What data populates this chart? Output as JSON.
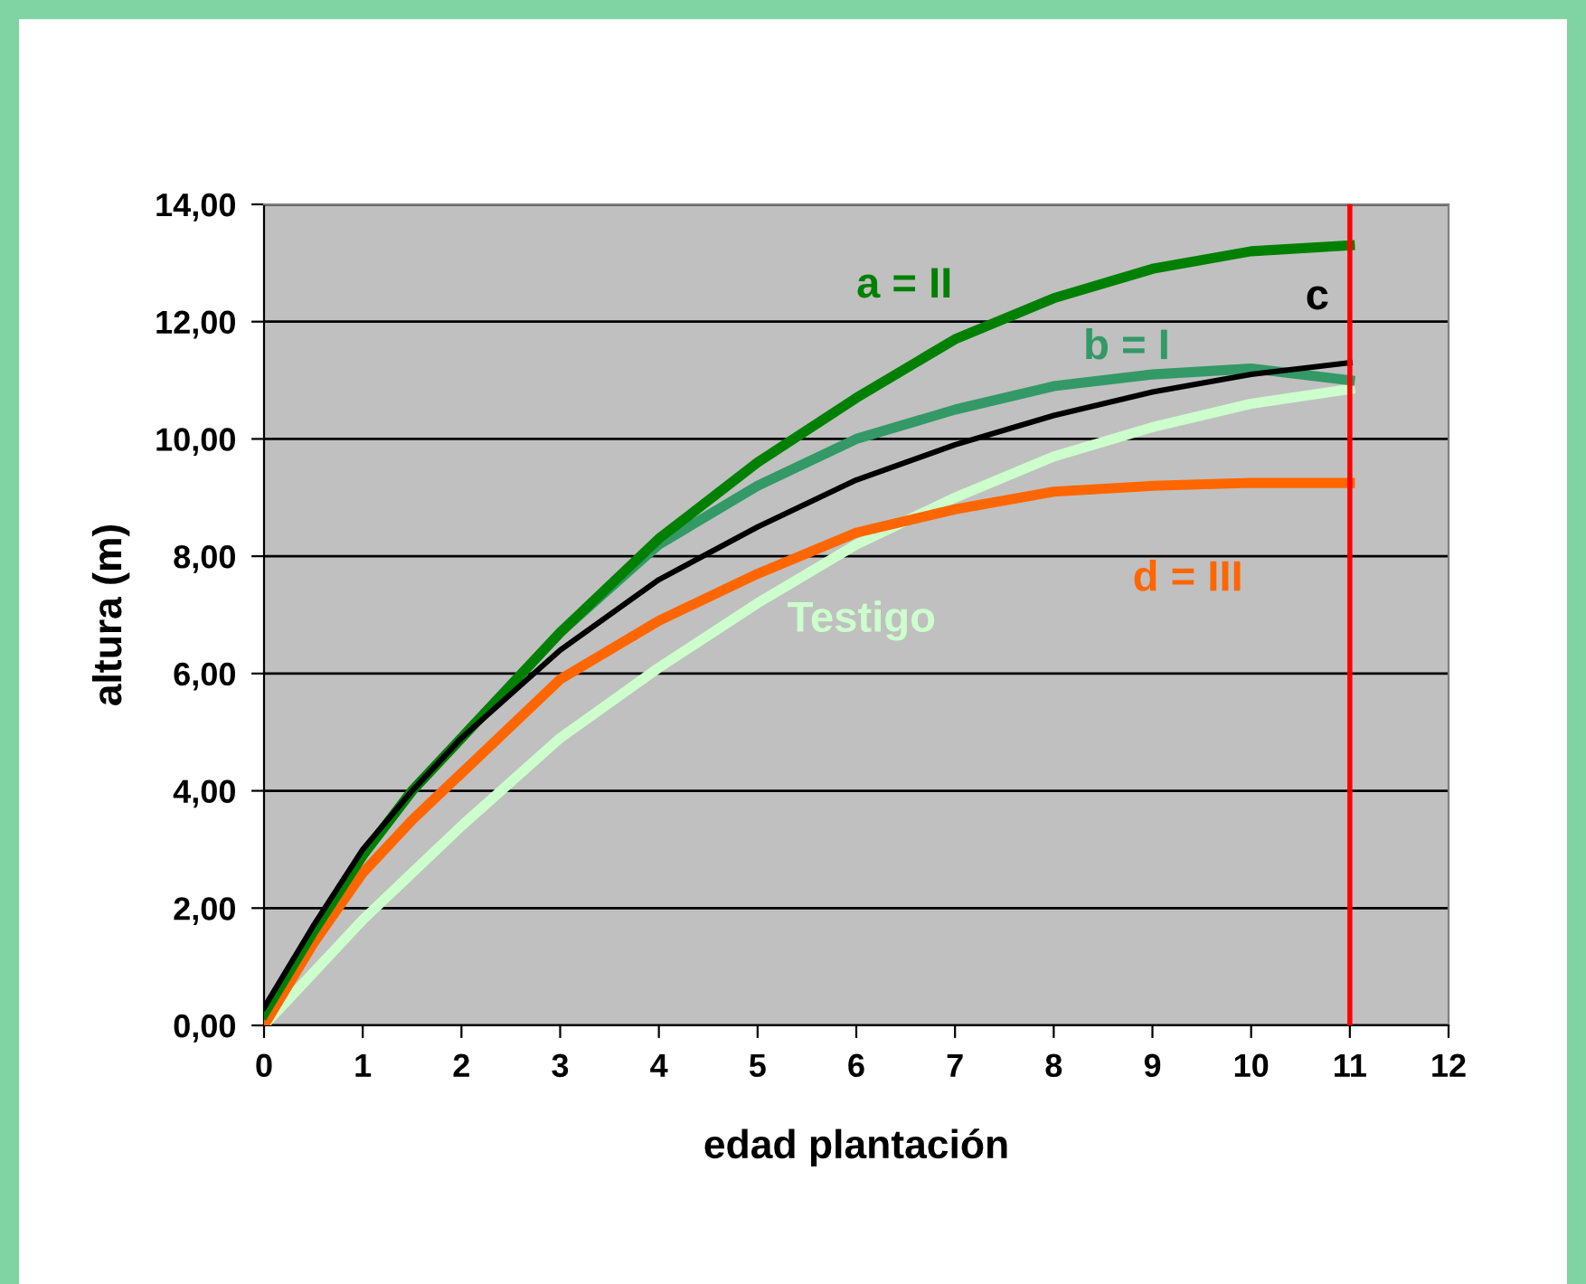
{
  "chart_data": {
    "type": "line",
    "xlabel": "edad plantación",
    "ylabel": "altura (m)",
    "x": [
      0,
      0.5,
      1,
      1.5,
      2,
      3,
      4,
      5,
      6,
      7,
      8,
      9,
      10,
      11
    ],
    "series": [
      {
        "name": "a = II",
        "color": "#008000",
        "values": [
          0.2,
          1.6,
          2.9,
          4.0,
          4.9,
          6.7,
          8.3,
          9.6,
          10.7,
          11.7,
          12.4,
          12.9,
          13.2,
          13.3
        ]
      },
      {
        "name": "b = I",
        "color": "#339966",
        "values": [
          0.2,
          1.6,
          2.9,
          4.0,
          4.9,
          6.7,
          8.2,
          9.2,
          10.0,
          10.5,
          10.9,
          11.1,
          11.2,
          11.0
        ]
      },
      {
        "name": "c",
        "color": "#000000",
        "values": [
          0.3,
          1.7,
          3.0,
          4.0,
          4.9,
          6.4,
          7.6,
          8.5,
          9.3,
          9.9,
          10.4,
          10.8,
          11.1,
          11.3
        ]
      },
      {
        "name": "d = III",
        "color": "#ff6600",
        "values": [
          0.0,
          1.4,
          2.6,
          3.5,
          4.3,
          5.9,
          6.9,
          7.7,
          8.4,
          8.8,
          9.1,
          9.2,
          9.25,
          9.25
        ]
      },
      {
        "name": "Testigo",
        "color": "#ccffcc",
        "values": [
          0.0,
          0.9,
          1.8,
          2.6,
          3.4,
          4.9,
          6.1,
          7.2,
          8.2,
          9.0,
          9.7,
          10.2,
          10.6,
          10.85
        ]
      }
    ],
    "xlim": [
      0,
      12
    ],
    "xticks": [
      0,
      1,
      2,
      3,
      4,
      5,
      6,
      7,
      8,
      9,
      10,
      11,
      12
    ],
    "ylim": [
      0,
      14
    ],
    "yticks": [
      {
        "value": 0,
        "label": "0,00"
      },
      {
        "value": 2,
        "label": "2,00"
      },
      {
        "value": 4,
        "label": "4,00"
      },
      {
        "value": 6,
        "label": "6,00"
      },
      {
        "value": 8,
        "label": "8,00"
      },
      {
        "value": 10,
        "label": "10,00"
      },
      {
        "value": 12,
        "label": "12,00"
      },
      {
        "value": 14,
        "label": "14,00"
      }
    ],
    "ref_lines": [
      {
        "axis": "x",
        "value": 11,
        "color": "#ff0000"
      }
    ],
    "grid": "y",
    "legend": false,
    "marker": "none",
    "line_style": "solid"
  }
}
